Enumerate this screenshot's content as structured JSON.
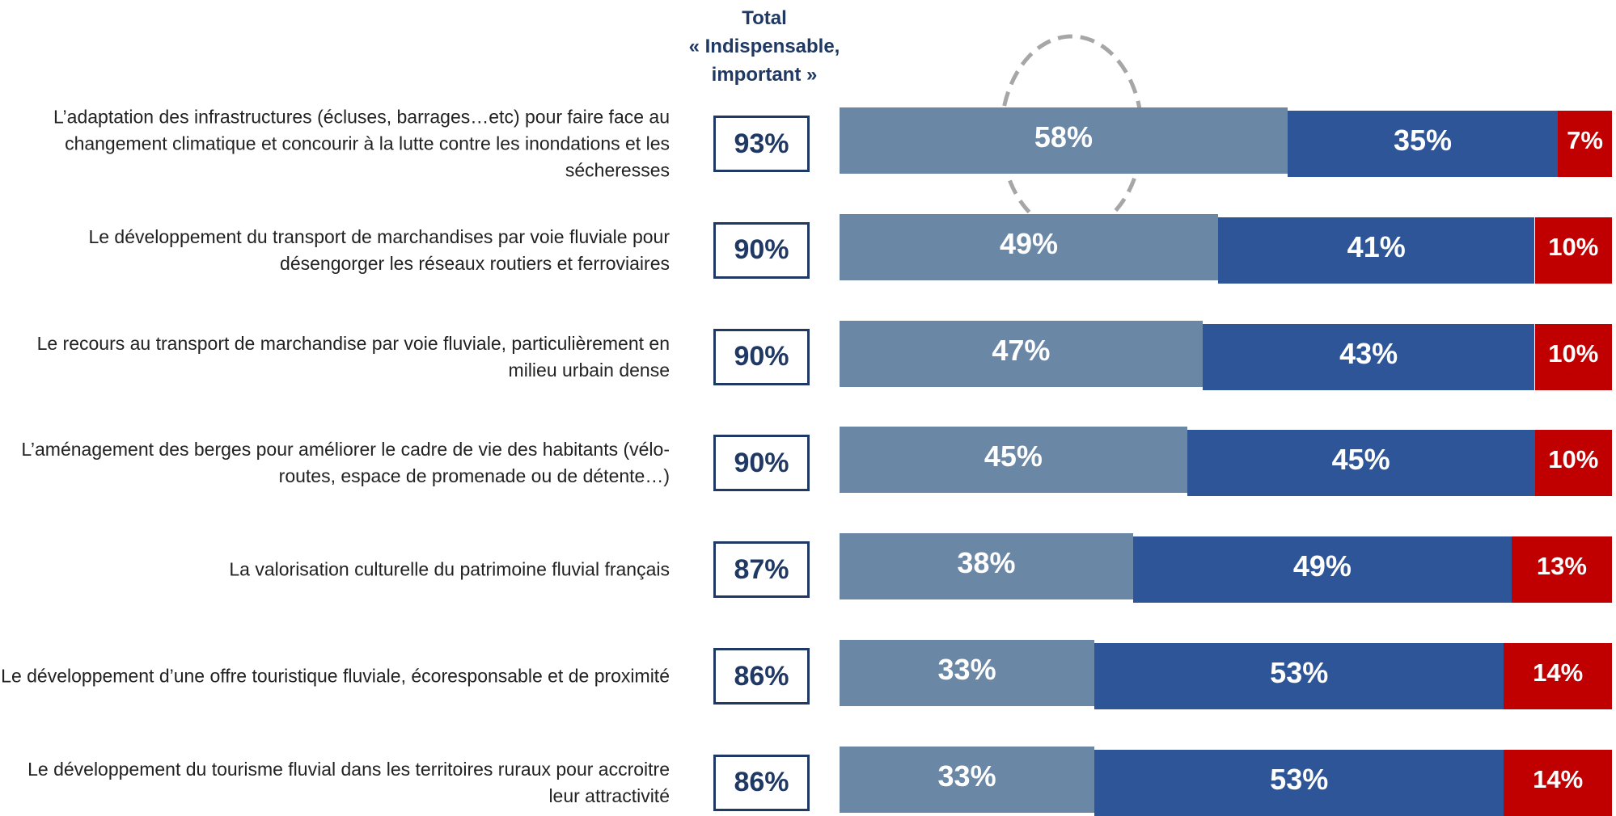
{
  "chart_data": {
    "type": "stacked-bar",
    "orientation": "horizontal",
    "total_header": [
      "Total",
      "« Indispensable,",
      "important »"
    ],
    "categories": [
      "L’adaptation des infrastructures (écluses, barrages…etc) pour faire face au changement climatique et concourir à la lutte contre les inondations et les sécheresses",
      "Le développement du transport de marchandises par voie fluviale pour désengorger les réseaux routiers et ferroviaires",
      "Le recours au transport de marchandise par voie fluviale, particulièrement en milieu urbain dense",
      "L’aménagement des berges pour améliorer le cadre de vie des habitants (vélo-routes, espace de promenade ou de détente…)",
      "La valorisation culturelle du patrimoine fluvial français",
      "Le développement d’une offre touristique fluviale, écoresponsable et de proximité",
      "Le développement du tourisme fluvial dans les territoires ruraux pour accroitre leur attractivité"
    ],
    "totals": {
      "values": [
        93,
        90,
        90,
        90,
        87,
        86,
        86
      ],
      "value_labels": [
        "93%",
        "90%",
        "90%",
        "90%",
        "87%",
        "86%",
        "86%"
      ]
    },
    "series": [
      {
        "color": "#6a87a6",
        "values": [
          58,
          49,
          47,
          45,
          38,
          33,
          33
        ],
        "value_labels": [
          "58%",
          "49%",
          "47%",
          "45%",
          "38%",
          "33%",
          "33%"
        ]
      },
      {
        "color": "#2e5597",
        "values": [
          35,
          41,
          43,
          45,
          49,
          53,
          53
        ],
        "value_labels": [
          "35%",
          "41%",
          "43%",
          "45%",
          "49%",
          "53%",
          "53%"
        ]
      },
      {
        "color": "#c00000",
        "values": [
          7,
          10,
          10,
          10,
          13,
          14,
          14
        ],
        "value_labels": [
          "7%",
          "10%",
          "10%",
          "10%",
          "13%",
          "14%",
          "14%"
        ]
      }
    ],
    "xlim": [
      0,
      100
    ]
  }
}
